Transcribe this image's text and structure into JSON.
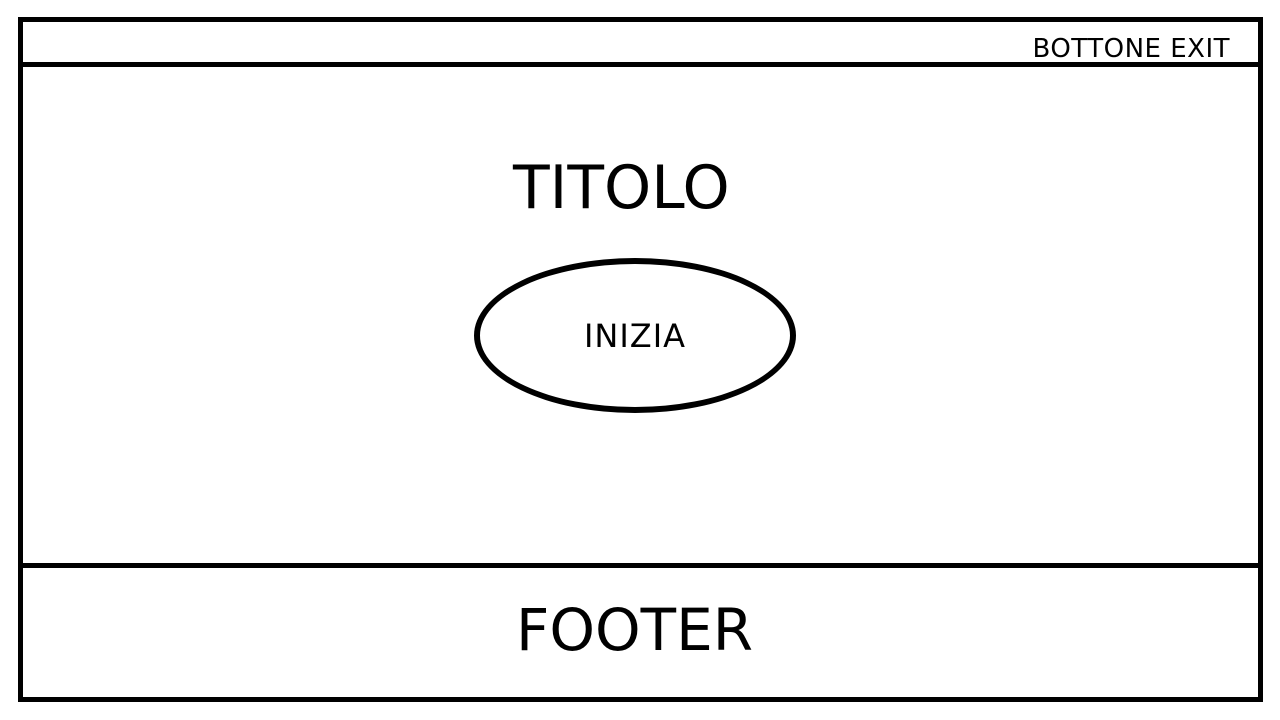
{
  "header": {
    "exit_label": "BOTTONE EXIT"
  },
  "main": {
    "title": "TITOLO",
    "start_label": "INIZIA"
  },
  "footer": {
    "label": "FOOTER"
  }
}
